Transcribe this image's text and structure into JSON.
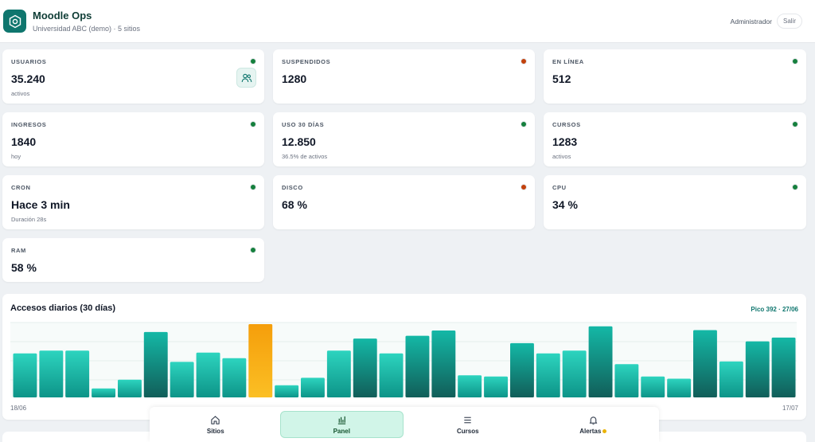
{
  "header": {
    "title": "Moodle Ops",
    "subtitle": "Universidad ABC (demo) · 5 sitios",
    "user": "Administrador",
    "logout": "Salir"
  },
  "colors": {
    "ok": "#15803d",
    "warn": "#c2410c",
    "accent": "#0f766e",
    "peak_bar": "#f59e0b"
  },
  "metrics": [
    {
      "label": "USUARIOS",
      "value": "35.240",
      "sub": "activos",
      "status": "ok",
      "icon": "users-icon"
    },
    {
      "label": "SUSPENDIDOS",
      "value": "1280",
      "sub": "",
      "status": "warn"
    },
    {
      "label": "EN LÍNEA",
      "value": "512",
      "sub": "",
      "status": "ok"
    },
    {
      "label": "INGRESOS",
      "value": "1840",
      "sub": "hoy",
      "status": "ok"
    },
    {
      "label": "USO 30 DÍAS",
      "value": "12.850",
      "sub": "36.5% de activos",
      "status": "ok"
    },
    {
      "label": "CURSOS",
      "value": "1283",
      "sub": "activos",
      "status": "ok"
    },
    {
      "label": "CRON",
      "value": "Hace 3 min",
      "sub": "Duración 28s",
      "status": "ok"
    },
    {
      "label": "DISCO",
      "value": "68 %",
      "sub": "",
      "status": "warn"
    },
    {
      "label": "CPU",
      "value": "34 %",
      "sub": "",
      "status": "ok"
    },
    {
      "label": "RAM",
      "value": "58 %",
      "sub": "",
      "status": "ok"
    }
  ],
  "chart_data": {
    "type": "bar",
    "title": "Accesos diarios (30 días)",
    "peak_label": "Pico 392 · 27/06",
    "x_start": "18/06",
    "x_end": "17/07",
    "peak_index": 9,
    "ylim": [
      0,
      392
    ],
    "values": [
      235,
      250,
      250,
      48,
      95,
      350,
      190,
      240,
      210,
      392,
      65,
      105,
      250,
      315,
      235,
      330,
      358,
      118,
      112,
      290,
      235,
      250,
      380,
      178,
      112,
      100,
      360,
      192,
      300,
      320
    ]
  },
  "nav": {
    "items": [
      {
        "label": "Sitios",
        "icon": "home-icon"
      },
      {
        "label": "Panel",
        "icon": "bar-chart-icon"
      },
      {
        "label": "Cursos",
        "icon": "list-icon"
      },
      {
        "label": "Alertas",
        "icon": "bell-icon"
      }
    ],
    "active": "Panel"
  }
}
